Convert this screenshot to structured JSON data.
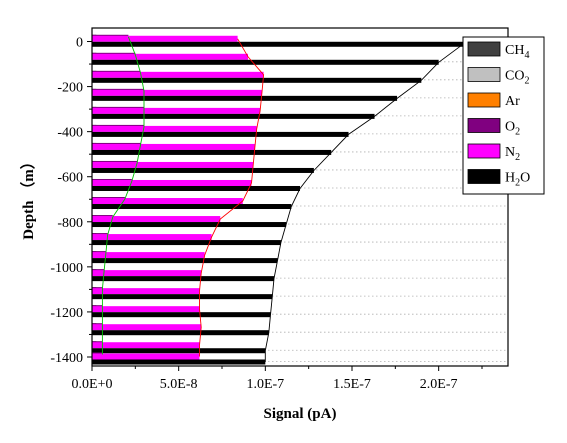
{
  "chart_data": {
    "type": "bar",
    "orientation": "horizontal",
    "stacked": false,
    "title": "",
    "xlabel": "Signal (pA)",
    "ylabel": "Depth （m）",
    "xlim": [
      0,
      2.4e-07
    ],
    "ylim": [
      -1440,
      60
    ],
    "x_ticks": [
      {
        "value": 0,
        "label": "0.0E+0"
      },
      {
        "value": 5e-08,
        "label": "5.0E-8"
      },
      {
        "value": 1e-07,
        "label": "1.0E-7"
      },
      {
        "value": 1.5e-07,
        "label": "1.5E-7"
      },
      {
        "value": 2e-07,
        "label": "2.0E-7"
      }
    ],
    "y_ticks": [
      {
        "value": 0,
        "label": "0"
      },
      {
        "value": -200,
        "label": "-200"
      },
      {
        "value": -400,
        "label": "-400"
      },
      {
        "value": -600,
        "label": "-600"
      },
      {
        "value": -800,
        "label": "-800"
      },
      {
        "value": -1000,
        "label": "-1000"
      },
      {
        "value": -1200,
        "label": "-1200"
      },
      {
        "value": -1400,
        "label": "-1400"
      }
    ],
    "grid": "dotted horizontal lines at each depth",
    "legend_position": "top-right",
    "depths": [
      -10,
      -90,
      -170,
      -250,
      -330,
      -410,
      -490,
      -570,
      -650,
      -730,
      -810,
      -890,
      -970,
      -1050,
      -1130,
      -1210,
      -1290,
      -1370,
      -1420
    ],
    "series": [
      {
        "name": "CH4",
        "label_main": "CH",
        "label_sub": "4",
        "color": "#404040",
        "values": [
          2.5e-09,
          2.5e-09,
          2.5e-09,
          2.5e-09,
          2.5e-09,
          2.5e-09,
          2.5e-09,
          2.5e-09,
          2.5e-09,
          2.5e-09,
          2.5e-09,
          2.5e-09,
          2.5e-09,
          2.5e-09,
          2.5e-09,
          2.5e-09,
          2.5e-09,
          2.5e-09,
          2.5e-09
        ]
      },
      {
        "name": "CO2",
        "label_main": "CO",
        "label_sub": "2",
        "color": "#c0c0c0",
        "values": [
          1e-09,
          1e-09,
          1e-09,
          1e-09,
          1e-09,
          1e-09,
          1e-09,
          1e-09,
          1e-09,
          1e-09,
          1e-09,
          1e-09,
          1e-09,
          1e-09,
          1e-09,
          1e-09,
          1e-09,
          1e-09,
          1e-09
        ]
      },
      {
        "name": "Ar",
        "label_main": "Ar",
        "label_sub": "",
        "color": "#ff8000",
        "values": [
          1e-09,
          1e-09,
          1e-09,
          1e-09,
          1e-09,
          1e-09,
          1e-09,
          1e-09,
          1e-09,
          1e-09,
          1e-09,
          1e-09,
          1e-09,
          1e-09,
          1e-09,
          1e-09,
          1e-09,
          1e-09,
          1e-09
        ]
      },
      {
        "name": "O2",
        "label_main": "O",
        "label_sub": "2",
        "color": "#800080",
        "values": [
          2.1e-08,
          2.5e-08,
          2.8e-08,
          3e-08,
          3e-08,
          3e-08,
          2.8e-08,
          2.6e-08,
          2.3e-08,
          1.9e-08,
          1.2e-08,
          9e-09,
          8e-09,
          7e-09,
          6e-09,
          6e-09,
          6e-09,
          6e-09,
          6e-09
        ]
      },
      {
        "name": "N2",
        "label_main": "N",
        "label_sub": "2",
        "color": "#ff00ff",
        "values": [
          8.4e-08,
          9e-08,
          9.9e-08,
          9.8e-08,
          9.7e-08,
          9.5e-08,
          9.4e-08,
          9.3e-08,
          9.2e-08,
          8.7e-08,
          7.4e-08,
          6.9e-08,
          6.5e-08,
          6.3e-08,
          6.2e-08,
          6.2e-08,
          6.3e-08,
          6.2e-08,
          6.2e-08
        ]
      },
      {
        "name": "H2O",
        "label_main": "H",
        "label_sub": "2",
        "label_tail": "O",
        "color": "#000000",
        "values": [
          2.14e-07,
          2e-07,
          1.9e-07,
          1.76e-07,
          1.63e-07,
          1.48e-07,
          1.38e-07,
          1.28e-07,
          1.2e-07,
          1.15e-07,
          1.12e-07,
          1.09e-07,
          1.07e-07,
          1.05e-07,
          1.04e-07,
          1.03e-07,
          1.02e-07,
          1e-07,
          1e-07
        ]
      }
    ],
    "envelope_lines": [
      {
        "series": "O2",
        "color": "#00c000"
      },
      {
        "series": "N2",
        "color": "#ff0000"
      },
      {
        "series": "H2O",
        "color": "#000000"
      }
    ]
  }
}
